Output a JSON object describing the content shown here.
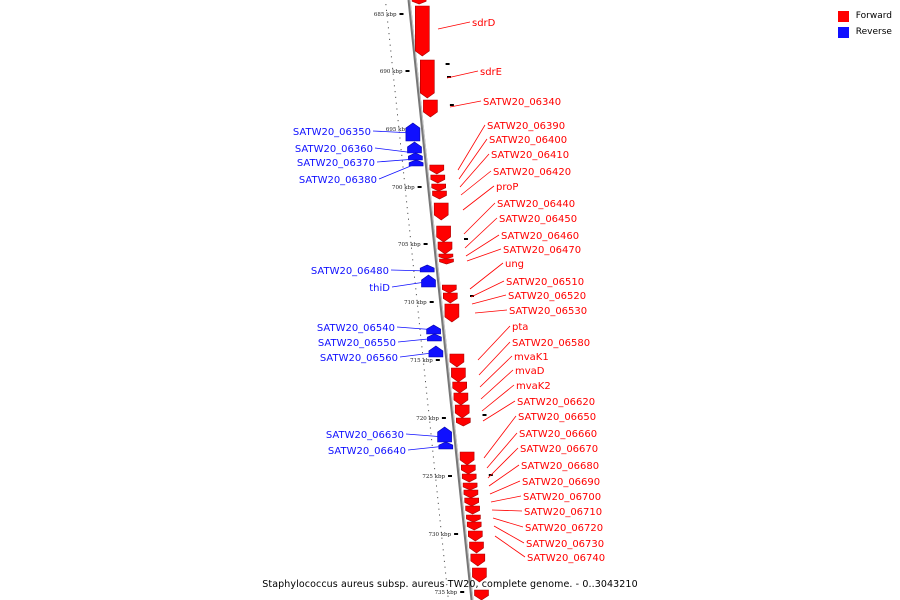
{
  "caption": "Staphylococcus aureus subsp. aureus TW20, complete genome. - 0..3043210",
  "legend": [
    {
      "label": "Forward",
      "color": "#ff0000"
    },
    {
      "label": "Reverse",
      "color": "#1010ff"
    }
  ],
  "colors": {
    "forward": "#ff0000",
    "reverse": "#1010ff",
    "backbone": "#999999"
  },
  "kbp_ticks": [
    "685 kbp",
    "690 kbp",
    "695 kbp",
    "700 kbp",
    "705 kbp",
    "710 kbp",
    "715 kbp",
    "720 kbp",
    "725 kbp",
    "730 kbp",
    "735 kbp"
  ],
  "forward_genes": [
    "sdrD",
    "sdrE",
    "SATW20_06340",
    "SATW20_06390",
    "SATW20_06400",
    "SATW20_06410",
    "SATW20_06420",
    "proP",
    "SATW20_06440",
    "SATW20_06450",
    "SATW20_06460",
    "SATW20_06470",
    "ung",
    "SATW20_06510",
    "SATW20_06520",
    "SATW20_06530",
    "pta",
    "SATW20_06580",
    "mvaK1",
    "mvaD",
    "mvaK2",
    "SATW20_06620",
    "SATW20_06650",
    "SATW20_06660",
    "SATW20_06670",
    "SATW20_06680",
    "SATW20_06690",
    "SATW20_06700",
    "SATW20_06710",
    "SATW20_06720",
    "SATW20_06730",
    "SATW20_06740"
  ],
  "reverse_genes": [
    "SATW20_06350",
    "SATW20_06360",
    "SATW20_06370",
    "SATW20_06380",
    "SATW20_06480",
    "thiD",
    "SATW20_06540",
    "SATW20_06550",
    "SATW20_06560",
    "SATW20_06630",
    "SATW20_06640"
  ]
}
